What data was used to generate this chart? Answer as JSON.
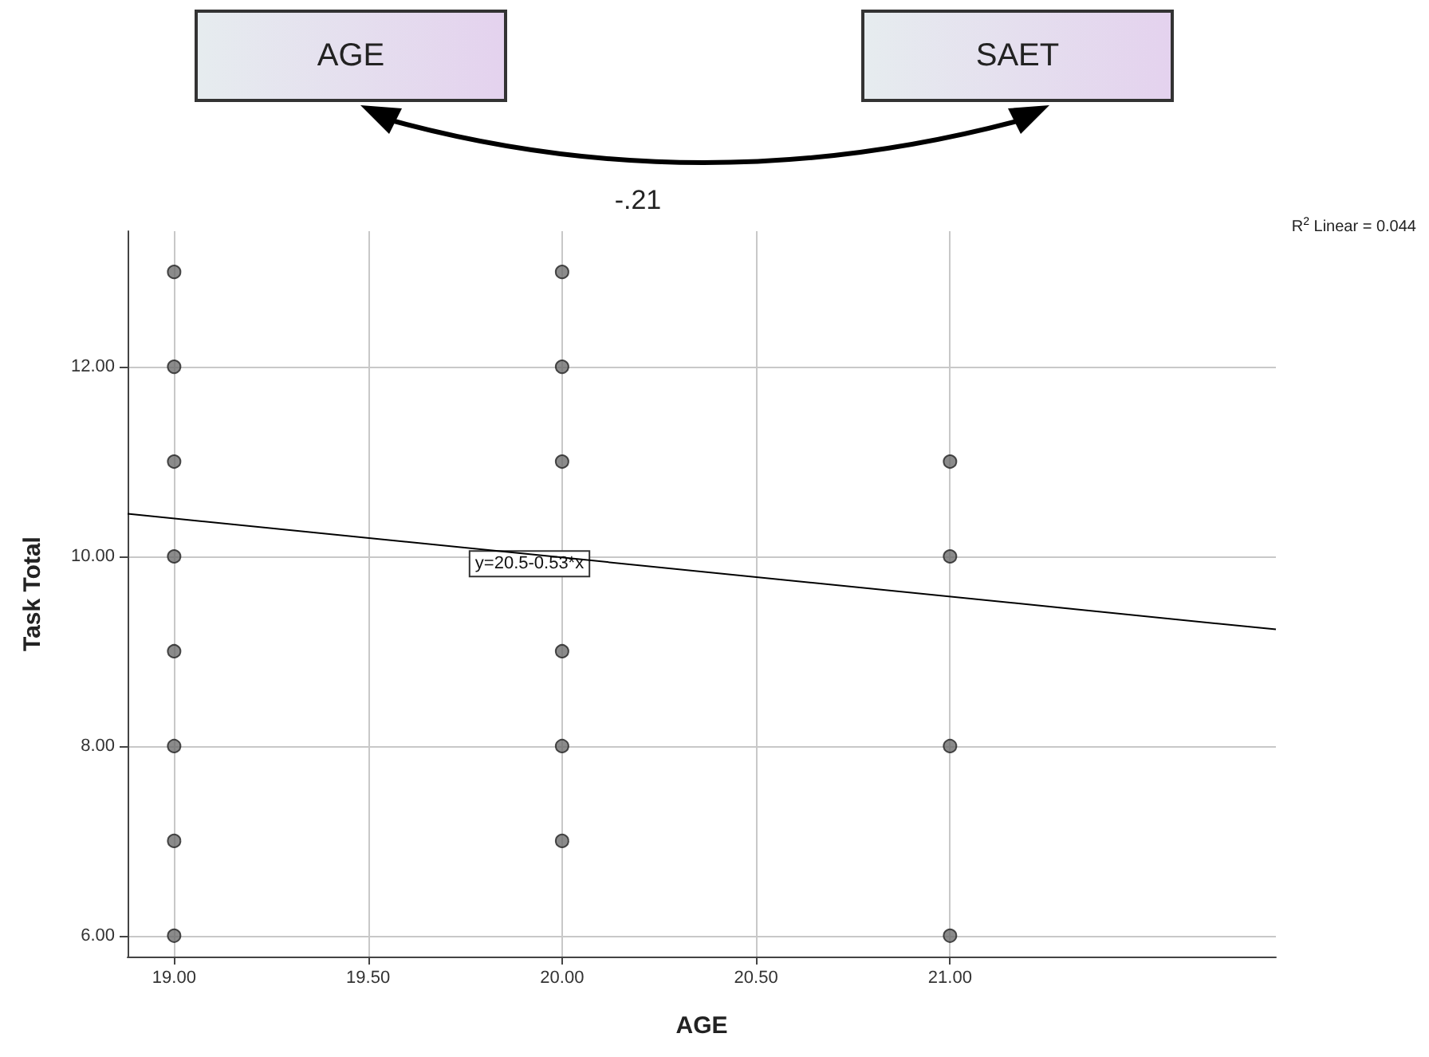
{
  "chart_data": {
    "type": "scatter",
    "xlabel": "AGE",
    "ylabel": "Task Total",
    "xlim": [
      18.88,
      21.84
    ],
    "ylim": [
      5.78,
      13.43
    ],
    "xticks": [
      {
        "value": 19,
        "label": "19.00"
      },
      {
        "value": 19.5,
        "label": "19.50"
      },
      {
        "value": 20,
        "label": "20.00"
      },
      {
        "value": 20.5,
        "label": "20.50"
      },
      {
        "value": 21,
        "label": "21.00"
      }
    ],
    "yticks": [
      {
        "value": 6,
        "label": "6.00"
      },
      {
        "value": 8,
        "label": "8.00"
      },
      {
        "value": 10,
        "label": "10.00"
      },
      {
        "value": 12,
        "label": "12.00"
      }
    ],
    "grid": true,
    "series": [
      {
        "color": "#6e6e6e",
        "marker": "circle",
        "x": [
          19,
          19,
          19,
          19,
          19,
          19,
          19,
          19,
          20,
          20,
          20,
          20,
          20,
          20,
          21,
          21,
          21,
          21
        ],
        "values": [
          6,
          7,
          8,
          9,
          10,
          11,
          12,
          13,
          7,
          8,
          9,
          11,
          12,
          13,
          6,
          8,
          10,
          11
        ]
      },
      {
        "type": "line",
        "color": "#000000",
        "marker": "none",
        "x": [
          18.88,
          21.84
        ],
        "values": [
          10.45,
          9.23
        ]
      }
    ],
    "annotations": [
      "AGE",
      "SAET",
      "-.21",
      "R$^{2}$ Linear = 0.044",
      "y=20.5-0.53*x"
    ]
  }
}
